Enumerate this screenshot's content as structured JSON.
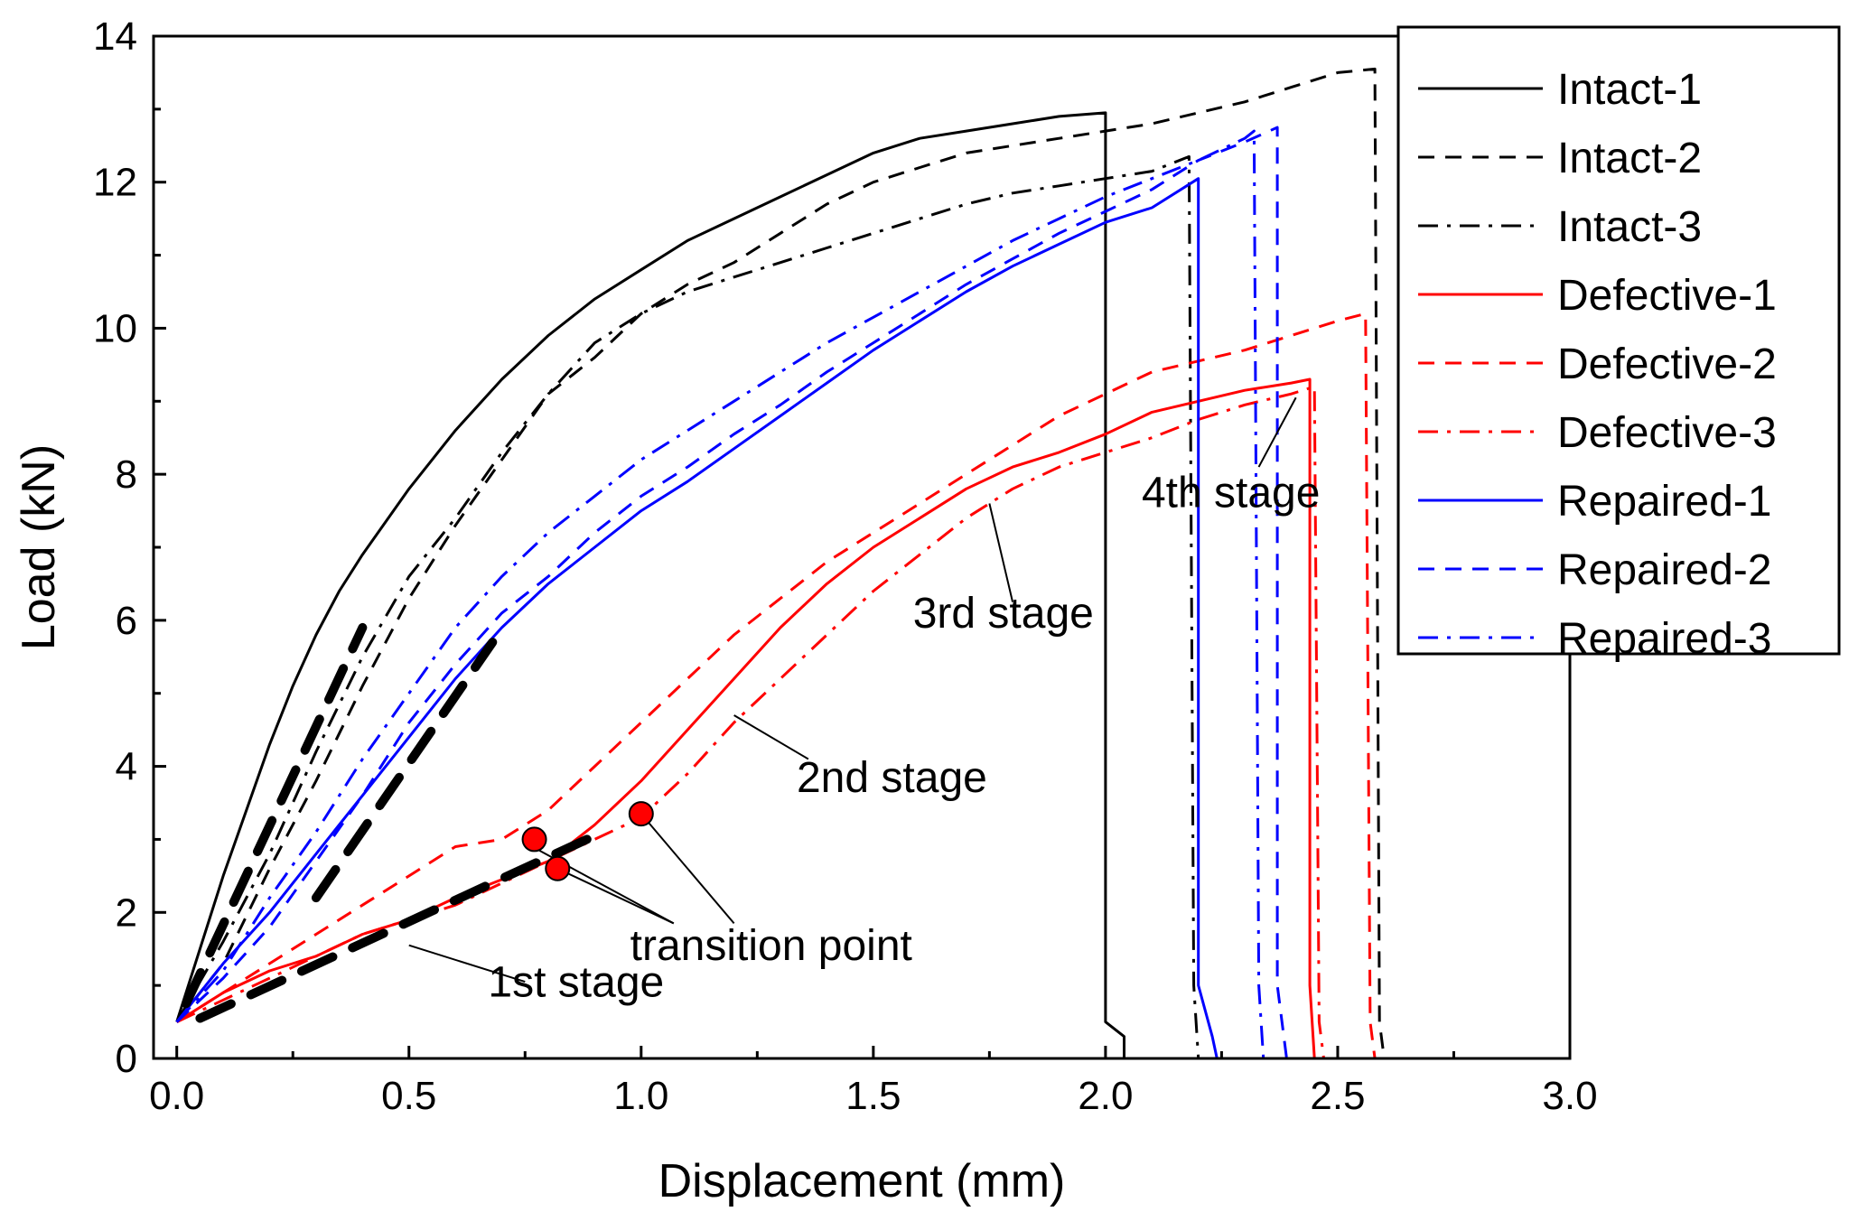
{
  "chart_data": {
    "type": "line",
    "title": "",
    "xlabel": "Displacement (mm)",
    "ylabel": "Load (kN)",
    "xlim": [
      -0.05,
      3.0
    ],
    "ylim": [
      0,
      14
    ],
    "xticks": [
      0.0,
      0.5,
      1.0,
      1.5,
      2.0,
      2.5,
      3.0
    ],
    "xtick_labels": [
      "0.0",
      "0.5",
      "1.0",
      "1.5",
      "2.0",
      "2.5",
      "3.0"
    ],
    "yticks": [
      0,
      2,
      4,
      6,
      8,
      10,
      12,
      14
    ],
    "ytick_labels": [
      "0",
      "2",
      "4",
      "6",
      "8",
      "10",
      "12",
      "14"
    ],
    "grid": false,
    "legend_position": "top-right",
    "colors": {
      "intact": "#000000",
      "defective": "#ff0000",
      "repaired": "#0000ff",
      "marker": "#ff0000",
      "fit": "#000000"
    },
    "series": [
      {
        "name": "Intact-1",
        "color": "#000000",
        "dash": "solid",
        "x": [
          0.0,
          0.05,
          0.1,
          0.15,
          0.2,
          0.25,
          0.3,
          0.35,
          0.4,
          0.5,
          0.6,
          0.7,
          0.8,
          0.9,
          1.0,
          1.1,
          1.2,
          1.3,
          1.4,
          1.5,
          1.6,
          1.7,
          1.8,
          1.9,
          2.0,
          2.0,
          2.04,
          2.04
        ],
        "y": [
          0.5,
          1.5,
          2.5,
          3.4,
          4.3,
          5.1,
          5.8,
          6.4,
          6.9,
          7.8,
          8.6,
          9.3,
          9.9,
          10.4,
          10.8,
          11.2,
          11.5,
          11.8,
          12.1,
          12.4,
          12.6,
          12.7,
          12.8,
          12.9,
          12.95,
          0.5,
          0.3,
          0.0
        ]
      },
      {
        "name": "Intact-2",
        "color": "#000000",
        "dash": "dashed",
        "x": [
          0.0,
          0.1,
          0.2,
          0.3,
          0.4,
          0.5,
          0.6,
          0.7,
          0.8,
          0.9,
          1.0,
          1.1,
          1.2,
          1.3,
          1.4,
          1.5,
          1.6,
          1.7,
          1.8,
          1.9,
          2.0,
          2.1,
          2.2,
          2.3,
          2.4,
          2.5,
          2.58,
          2.59,
          2.6
        ],
        "y": [
          0.5,
          1.3,
          2.6,
          3.8,
          5.1,
          6.3,
          7.3,
          8.2,
          9.1,
          9.6,
          10.2,
          10.6,
          10.9,
          11.3,
          11.7,
          12.0,
          12.2,
          12.4,
          12.5,
          12.6,
          12.7,
          12.8,
          12.95,
          13.1,
          13.3,
          13.5,
          13.55,
          0.5,
          0.0
        ]
      },
      {
        "name": "Intact-3",
        "color": "#000000",
        "dash": "dashdot",
        "x": [
          0.0,
          0.1,
          0.2,
          0.3,
          0.4,
          0.5,
          0.6,
          0.7,
          0.8,
          0.9,
          1.0,
          1.1,
          1.2,
          1.3,
          1.4,
          1.5,
          1.6,
          1.7,
          1.8,
          1.9,
          2.0,
          2.1,
          2.18,
          2.19,
          2.2
        ],
        "y": [
          0.5,
          1.6,
          2.8,
          4.2,
          5.5,
          6.6,
          7.4,
          8.3,
          9.1,
          9.8,
          10.2,
          10.5,
          10.7,
          10.9,
          11.1,
          11.3,
          11.5,
          11.7,
          11.85,
          11.95,
          12.05,
          12.15,
          12.35,
          1.0,
          0.0
        ]
      },
      {
        "name": "Defective-1",
        "color": "#ff0000",
        "dash": "solid",
        "x": [
          0.0,
          0.1,
          0.2,
          0.3,
          0.4,
          0.5,
          0.6,
          0.7,
          0.8,
          0.9,
          1.0,
          1.1,
          1.2,
          1.3,
          1.4,
          1.5,
          1.6,
          1.7,
          1.8,
          1.9,
          2.0,
          2.1,
          2.2,
          2.3,
          2.4,
          2.44,
          2.44,
          2.45
        ],
        "y": [
          0.5,
          0.9,
          1.2,
          1.4,
          1.7,
          1.9,
          2.2,
          2.45,
          2.7,
          3.2,
          3.8,
          4.5,
          5.2,
          5.9,
          6.5,
          7.0,
          7.4,
          7.8,
          8.1,
          8.3,
          8.55,
          8.85,
          9.0,
          9.15,
          9.25,
          9.3,
          1.0,
          0.0
        ]
      },
      {
        "name": "Defective-2",
        "color": "#ff0000",
        "dash": "dashed",
        "x": [
          0.0,
          0.1,
          0.2,
          0.3,
          0.4,
          0.5,
          0.6,
          0.7,
          0.8,
          0.9,
          1.0,
          1.1,
          1.2,
          1.3,
          1.4,
          1.5,
          1.6,
          1.7,
          1.8,
          1.9,
          2.0,
          2.1,
          2.2,
          2.3,
          2.4,
          2.5,
          2.56,
          2.57,
          2.58
        ],
        "y": [
          0.5,
          0.9,
          1.3,
          1.7,
          2.1,
          2.5,
          2.9,
          3.0,
          3.4,
          4.0,
          4.6,
          5.2,
          5.8,
          6.3,
          6.8,
          7.2,
          7.6,
          8.0,
          8.4,
          8.8,
          9.1,
          9.4,
          9.55,
          9.7,
          9.9,
          10.1,
          10.2,
          0.5,
          0.0
        ]
      },
      {
        "name": "Defective-3",
        "color": "#ff0000",
        "dash": "dashdot",
        "x": [
          0.0,
          0.1,
          0.2,
          0.3,
          0.4,
          0.5,
          0.6,
          0.7,
          0.8,
          0.9,
          1.0,
          1.1,
          1.2,
          1.3,
          1.4,
          1.5,
          1.6,
          1.7,
          1.8,
          1.9,
          2.0,
          2.1,
          2.2,
          2.3,
          2.4,
          2.45,
          2.46,
          2.47
        ],
        "y": [
          0.5,
          0.8,
          1.1,
          1.4,
          1.7,
          1.9,
          2.1,
          2.4,
          2.7,
          3.0,
          3.3,
          3.9,
          4.6,
          5.2,
          5.8,
          6.4,
          6.9,
          7.4,
          7.8,
          8.1,
          8.3,
          8.5,
          8.75,
          8.95,
          9.1,
          9.2,
          0.5,
          0.0
        ]
      },
      {
        "name": "Repaired-1",
        "color": "#0000ff",
        "dash": "solid",
        "x": [
          0.0,
          0.1,
          0.2,
          0.3,
          0.4,
          0.5,
          0.6,
          0.7,
          0.8,
          0.9,
          1.0,
          1.1,
          1.2,
          1.3,
          1.4,
          1.5,
          1.6,
          1.7,
          1.8,
          1.9,
          2.0,
          2.1,
          2.2,
          2.2,
          2.23,
          2.24
        ],
        "y": [
          0.5,
          1.3,
          2.0,
          2.8,
          3.6,
          4.4,
          5.2,
          5.9,
          6.5,
          7.0,
          7.5,
          7.9,
          8.35,
          8.8,
          9.25,
          9.7,
          10.1,
          10.5,
          10.85,
          11.15,
          11.45,
          11.65,
          12.05,
          1.0,
          0.3,
          0.0
        ]
      },
      {
        "name": "Repaired-2",
        "color": "#0000ff",
        "dash": "dashed",
        "x": [
          0.0,
          0.1,
          0.2,
          0.3,
          0.4,
          0.5,
          0.6,
          0.7,
          0.8,
          0.9,
          1.0,
          1.1,
          1.2,
          1.3,
          1.4,
          1.5,
          1.6,
          1.7,
          1.8,
          1.9,
          2.0,
          2.1,
          2.2,
          2.3,
          2.37,
          2.37,
          2.39
        ],
        "y": [
          0.5,
          1.1,
          1.8,
          2.7,
          3.6,
          4.6,
          5.4,
          6.1,
          6.6,
          7.2,
          7.7,
          8.1,
          8.55,
          8.95,
          9.4,
          9.8,
          10.2,
          10.6,
          10.95,
          11.3,
          11.6,
          11.9,
          12.3,
          12.55,
          12.75,
          1.0,
          0.0
        ]
      },
      {
        "name": "Repaired-3",
        "color": "#0000ff",
        "dash": "dashdot",
        "x": [
          0.0,
          0.1,
          0.2,
          0.3,
          0.4,
          0.5,
          0.6,
          0.7,
          0.8,
          0.9,
          1.0,
          1.1,
          1.2,
          1.3,
          1.4,
          1.5,
          1.6,
          1.7,
          1.8,
          1.9,
          2.0,
          2.1,
          2.2,
          2.3,
          2.32,
          2.33,
          2.34
        ],
        "y": [
          0.5,
          1.2,
          2.2,
          3.1,
          4.1,
          5.0,
          5.9,
          6.6,
          7.2,
          7.7,
          8.2,
          8.6,
          9.0,
          9.4,
          9.8,
          10.15,
          10.5,
          10.85,
          11.2,
          11.5,
          11.8,
          12.05,
          12.3,
          12.6,
          12.7,
          1.0,
          0.0
        ]
      }
    ],
    "fit_lines": [
      {
        "name": "intact-initial-slope",
        "x": [
          0.02,
          0.4
        ],
        "y": [
          0.75,
          5.9
        ]
      },
      {
        "name": "repaired-initial-slope",
        "x": [
          0.3,
          0.68
        ],
        "y": [
          2.2,
          5.7
        ]
      },
      {
        "name": "defective-initial-slope",
        "x": [
          0.05,
          0.9
        ],
        "y": [
          0.55,
          3.05
        ]
      }
    ],
    "transition_points": [
      {
        "x": 0.77,
        "y": 3.0
      },
      {
        "x": 0.82,
        "y": 2.6
      },
      {
        "x": 1.0,
        "y": 3.35
      }
    ],
    "annotations": [
      {
        "text": "1st stage",
        "label_x": 0.86,
        "label_y": 0.85,
        "pointer": [
          [
            0.75,
            1.05
          ],
          [
            0.5,
            1.55
          ]
        ]
      },
      {
        "text": "transition point",
        "label_x": 1.28,
        "label_y": 1.35,
        "pointer": [
          [
            1.07,
            1.85
          ],
          [
            0.82,
            2.6
          ],
          [
            1.2,
            1.85
          ],
          [
            1.0,
            3.35
          ],
          [
            1.07,
            1.85
          ],
          [
            0.78,
            2.85
          ]
        ]
      },
      {
        "text": "2nd stage",
        "label_x": 1.54,
        "label_y": 3.65,
        "pointer": [
          [
            1.36,
            4.1
          ],
          [
            1.2,
            4.7
          ]
        ]
      },
      {
        "text": "3rd stage",
        "label_x": 1.78,
        "label_y": 5.9,
        "pointer": [
          [
            1.8,
            6.25
          ],
          [
            1.75,
            7.6
          ]
        ]
      },
      {
        "text": "4th stage",
        "label_x": 2.27,
        "label_y": 7.55,
        "pointer": [
          [
            2.33,
            8.1
          ],
          [
            2.41,
            9.05
          ]
        ]
      }
    ]
  }
}
